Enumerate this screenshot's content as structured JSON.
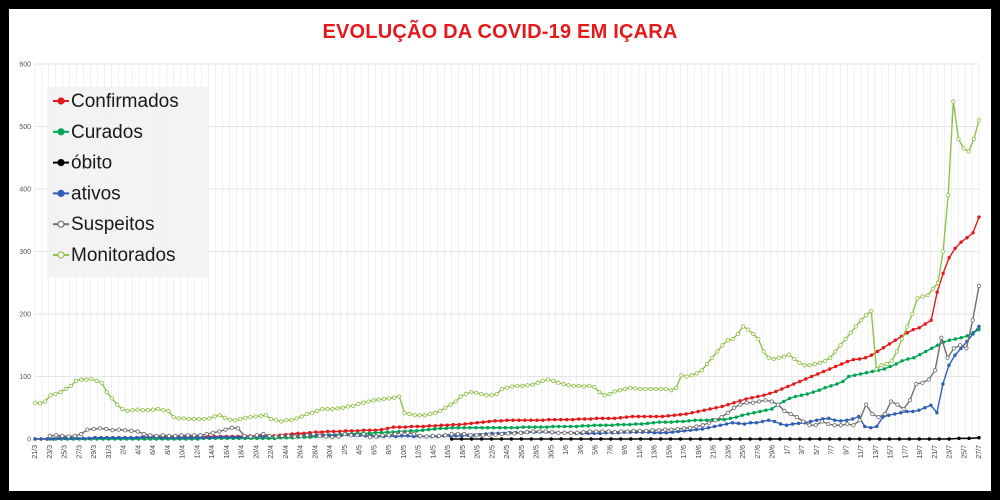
{
  "title": "EVOLUÇÃO DA COVID-19 EM IÇARA",
  "chart_data": {
    "type": "line",
    "title": "EVOLUÇÃO DA COVID-19 EM IÇARA",
    "xlabel": "",
    "ylabel": "",
    "ylim": [
      0,
      600
    ],
    "yticks": [
      0,
      100,
      200,
      300,
      400,
      500,
      600
    ],
    "grid": true,
    "legend": "top-left",
    "x_tick_labels": [
      "21/3",
      "23/3",
      "25/3",
      "27/3",
      "29/3",
      "31/3",
      "2/4",
      "4/4",
      "6/4",
      "8/4",
      "10/4",
      "12/4",
      "14/4",
      "16/4",
      "18/4",
      "20/4",
      "22/4",
      "24/4",
      "26/4",
      "28/4",
      "30/4",
      "2/5",
      "4/5",
      "6/5",
      "8/5",
      "10/5",
      "12/5",
      "14/5",
      "16/5",
      "18/5",
      "20/5",
      "22/5",
      "24/5",
      "26/5",
      "28/5",
      "30/5",
      "1/6",
      "3/6",
      "5/6",
      "7/6",
      "9/6",
      "11/6",
      "13/6",
      "15/6",
      "17/6",
      "19/6",
      "21/6",
      "23/6",
      "25/6",
      "27/6",
      "29/6",
      "1/7",
      "3/7",
      "5/7",
      "7/7",
      "9/7",
      "11/7",
      "13/7",
      "15/7",
      "17/7",
      "19/7",
      "21/7",
      "23/7",
      "25/7",
      "27/7"
    ],
    "series": [
      {
        "name": "Confirmados",
        "color": "#e31a1c",
        "marker": "filled",
        "start": 0,
        "values": [
          0,
          0,
          0,
          0,
          1,
          1,
          1,
          1,
          1,
          1,
          2,
          2,
          2,
          2,
          2,
          2,
          2,
          2,
          3,
          3,
          3,
          3,
          3,
          3,
          3,
          3,
          3,
          3,
          3,
          4,
          4,
          4,
          4,
          4,
          4,
          5,
          5,
          5,
          5,
          5,
          5,
          6,
          7,
          8,
          9,
          9,
          10,
          11,
          11,
          12,
          12,
          12,
          13,
          13,
          13,
          14,
          14,
          14,
          15,
          17,
          19,
          19,
          19,
          20,
          20,
          20,
          21,
          21,
          22,
          22,
          23,
          23,
          24,
          25,
          26,
          27,
          28,
          29,
          29,
          30,
          30,
          30,
          30,
          30,
          30,
          30,
          31,
          31,
          31,
          31,
          31,
          32,
          32,
          32,
          33,
          33,
          33,
          33,
          34,
          35,
          36,
          36,
          36,
          36,
          36,
          36,
          37,
          38,
          39,
          40,
          42,
          44,
          46,
          48,
          50,
          52,
          55,
          58,
          61,
          64,
          66,
          68,
          70,
          73,
          76,
          80,
          84,
          88,
          92,
          96,
          100,
          104,
          108,
          112,
          116,
          120,
          124,
          127,
          128,
          130,
          134,
          140,
          146,
          152,
          158,
          164,
          170,
          175,
          178,
          184,
          190,
          235,
          265,
          290,
          305,
          315,
          322,
          330,
          355
        ]
      },
      {
        "name": "Curados",
        "color": "#00a651",
        "marker": "filled",
        "start": 4,
        "values": [
          0,
          0,
          0,
          0,
          0,
          0,
          0,
          0,
          0,
          0,
          0,
          0,
          0,
          0,
          0,
          0,
          0,
          0,
          0,
          0,
          0,
          0,
          0,
          0,
          0,
          0,
          1,
          1,
          1,
          1,
          1,
          1,
          1,
          1,
          1,
          1,
          1,
          1,
          1,
          2,
          2,
          2,
          3,
          3,
          3,
          4,
          5,
          6,
          6,
          7,
          8,
          8,
          9,
          9,
          9,
          10,
          10,
          11,
          11,
          12,
          12,
          13,
          13,
          14,
          15,
          16,
          17,
          17,
          18,
          18,
          18,
          18,
          18,
          18,
          18,
          18,
          18,
          18,
          18,
          18,
          19,
          19,
          19,
          19,
          19,
          20,
          20,
          20,
          20,
          20,
          21,
          21,
          22,
          22,
          22,
          22,
          23,
          23,
          23,
          24,
          24,
          25,
          26,
          27,
          27,
          27,
          28,
          28,
          29,
          30,
          30,
          30,
          31,
          31,
          31,
          33,
          35,
          38,
          40,
          42,
          44,
          46,
          48,
          55,
          60,
          65,
          68,
          70,
          72,
          75,
          78,
          82,
          85,
          88,
          92,
          100,
          102,
          104,
          106,
          108,
          110,
          112,
          116,
          120,
          125,
          128,
          130,
          135,
          140,
          145,
          150,
          155,
          158,
          160,
          162,
          165,
          170,
          175
        ]
      },
      {
        "name": "óbito",
        "color": "#000000",
        "marker": "filled",
        "start": 113,
        "values": [
          0,
          0,
          0,
          0,
          0,
          0,
          0,
          0,
          0,
          0,
          0,
          0,
          0,
          0,
          0,
          0,
          0,
          0,
          0,
          0,
          0,
          0,
          0,
          0,
          0,
          0,
          0,
          0,
          0,
          0,
          0,
          0,
          0,
          0,
          0,
          0,
          0,
          0,
          0,
          0,
          0,
          0,
          0,
          0,
          0,
          0,
          0,
          0,
          0,
          0,
          0,
          1,
          1,
          2
        ]
      },
      {
        "name": "ativos",
        "color": "#2f5fb5",
        "marker": "filled",
        "start": 0,
        "values": [
          0,
          0,
          0,
          0,
          1,
          1,
          1,
          1,
          1,
          1,
          2,
          2,
          2,
          2,
          2,
          2,
          2,
          2,
          3,
          3,
          3,
          2,
          2,
          2,
          2,
          2,
          2,
          2,
          2,
          2,
          3,
          3,
          3,
          3,
          3,
          3,
          4,
          4,
          4,
          4,
          4,
          4,
          5,
          5,
          5,
          6,
          6,
          6,
          6,
          6,
          6,
          6,
          7,
          6,
          6,
          5,
          5,
          4,
          4,
          5,
          4,
          5,
          5,
          4,
          4,
          4,
          4,
          4,
          5,
          5,
          5,
          5,
          6,
          6,
          7,
          8,
          9,
          9,
          9,
          10,
          10,
          10,
          11,
          11,
          11,
          11,
          10,
          10,
          10,
          10,
          9,
          9,
          9,
          9,
          9,
          10,
          10,
          10,
          11,
          11,
          11,
          11,
          11,
          10,
          10,
          10,
          11,
          12,
          13,
          14,
          15,
          16,
          18,
          20,
          22,
          24,
          26,
          25,
          24,
          26,
          26,
          28,
          30,
          28,
          24,
          22,
          24,
          25,
          26,
          28,
          30,
          32,
          33,
          30,
          29,
          30,
          32,
          36,
          20,
          18,
          20,
          35,
          38,
          40,
          42,
          44,
          44,
          46,
          50,
          54,
          42,
          88,
          118,
          134,
          145,
          156,
          168,
          180
        ]
      },
      {
        "name": "Suspeitos",
        "color": "#6f6f6f",
        "marker": "open",
        "start": 4,
        "values": [
          5,
          6,
          5,
          4,
          5,
          8,
          15,
          16,
          17,
          16,
          14,
          15,
          14,
          13,
          12,
          8,
          6,
          5,
          6,
          5,
          5,
          6,
          6,
          6,
          6,
          8,
          10,
          12,
          15,
          18,
          17,
          5,
          4,
          6,
          8,
          5,
          4,
          5,
          5,
          4,
          5,
          6,
          8,
          5,
          4,
          3,
          4,
          8,
          6,
          6,
          8,
          3,
          4,
          6,
          6,
          8,
          10,
          10,
          8,
          5,
          4,
          5,
          5,
          6,
          8,
          8,
          8,
          6,
          6,
          6,
          7,
          7,
          8,
          9,
          9,
          10,
          11,
          12,
          12,
          12,
          11,
          10,
          10,
          10,
          10,
          11,
          12,
          12,
          12,
          12,
          11,
          12,
          12,
          13,
          13,
          13,
          14,
          14,
          15,
          15,
          16,
          17,
          18,
          20,
          22,
          26,
          30,
          35,
          42,
          50,
          55,
          58,
          58,
          60,
          62,
          60,
          55,
          45,
          40,
          35,
          28,
          22,
          22,
          28,
          24,
          22,
          22,
          24,
          22,
          30,
          55,
          40,
          35,
          40,
          60,
          55,
          48,
          62,
          88,
          90,
          95,
          110,
          162,
          130,
          145,
          150,
          145,
          190,
          245
        ]
      },
      {
        "name": "Monitorados",
        "color": "#8fc14a",
        "marker": "open",
        "start": 0,
        "values": [
          58,
          57,
          60,
          70,
          72,
          75,
          80,
          85,
          93,
          95,
          95,
          96,
          93,
          90,
          75,
          65,
          55,
          48,
          45,
          46,
          47,
          46,
          46,
          47,
          48,
          46,
          45,
          35,
          33,
          33,
          32,
          32,
          32,
          32,
          33,
          36,
          38,
          34,
          31,
          30,
          32,
          34,
          35,
          36,
          37,
          38,
          32,
          30,
          28,
          30,
          30,
          33,
          36,
          40,
          42,
          45,
          48,
          48,
          48,
          49,
          50,
          52,
          53,
          56,
          58,
          60,
          62,
          63,
          64,
          65,
          66,
          68,
          42,
          40,
          38,
          38,
          38,
          40,
          42,
          45,
          50,
          55,
          60,
          68,
          72,
          75,
          74,
          72,
          70,
          70,
          72,
          80,
          82,
          84,
          85,
          85,
          86,
          87,
          90,
          93,
          95,
          93,
          90,
          88,
          86,
          85,
          85,
          84,
          85,
          83,
          75,
          70,
          72,
          76,
          78,
          80,
          82,
          81,
          80,
          80,
          80,
          80,
          80,
          80,
          78,
          82,
          102,
          100,
          102,
          105,
          110,
          120,
          130,
          140,
          150,
          158,
          160,
          168,
          180,
          175,
          168,
          160,
          140,
          130,
          128,
          130,
          132,
          135,
          128,
          122,
          118,
          118,
          120,
          122,
          125,
          130,
          140,
          150,
          160,
          170,
          180,
          190,
          198,
          205,
          112,
          118,
          120,
          125,
          140,
          160,
          180,
          200,
          225,
          228,
          230,
          240,
          250,
          300,
          390,
          540,
          480,
          465,
          460,
          480,
          510
        ]
      }
    ]
  }
}
